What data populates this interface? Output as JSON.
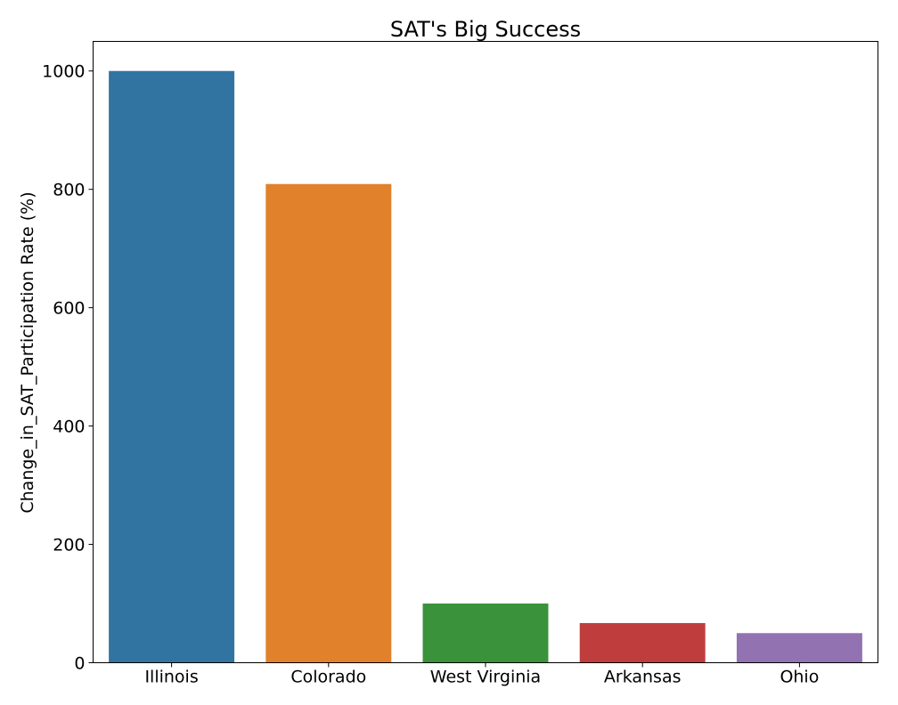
{
  "chart_data": {
    "type": "bar",
    "title": "SAT's Big Success",
    "xlabel": "",
    "ylabel": "Change_in_SAT_Participation Rate (%)",
    "categories": [
      "Illinois",
      "Colorado",
      "West Virginia",
      "Arkansas",
      "Ohio"
    ],
    "values": [
      1000,
      809,
      100,
      67,
      50
    ],
    "colors": [
      "#3274a1",
      "#e1812c",
      "#3a923a",
      "#c03d3e",
      "#9372b2"
    ],
    "ylim": [
      0,
      1050
    ],
    "yticks": [
      0,
      200,
      400,
      600,
      800,
      1000
    ],
    "grid": false,
    "legend": "none"
  }
}
